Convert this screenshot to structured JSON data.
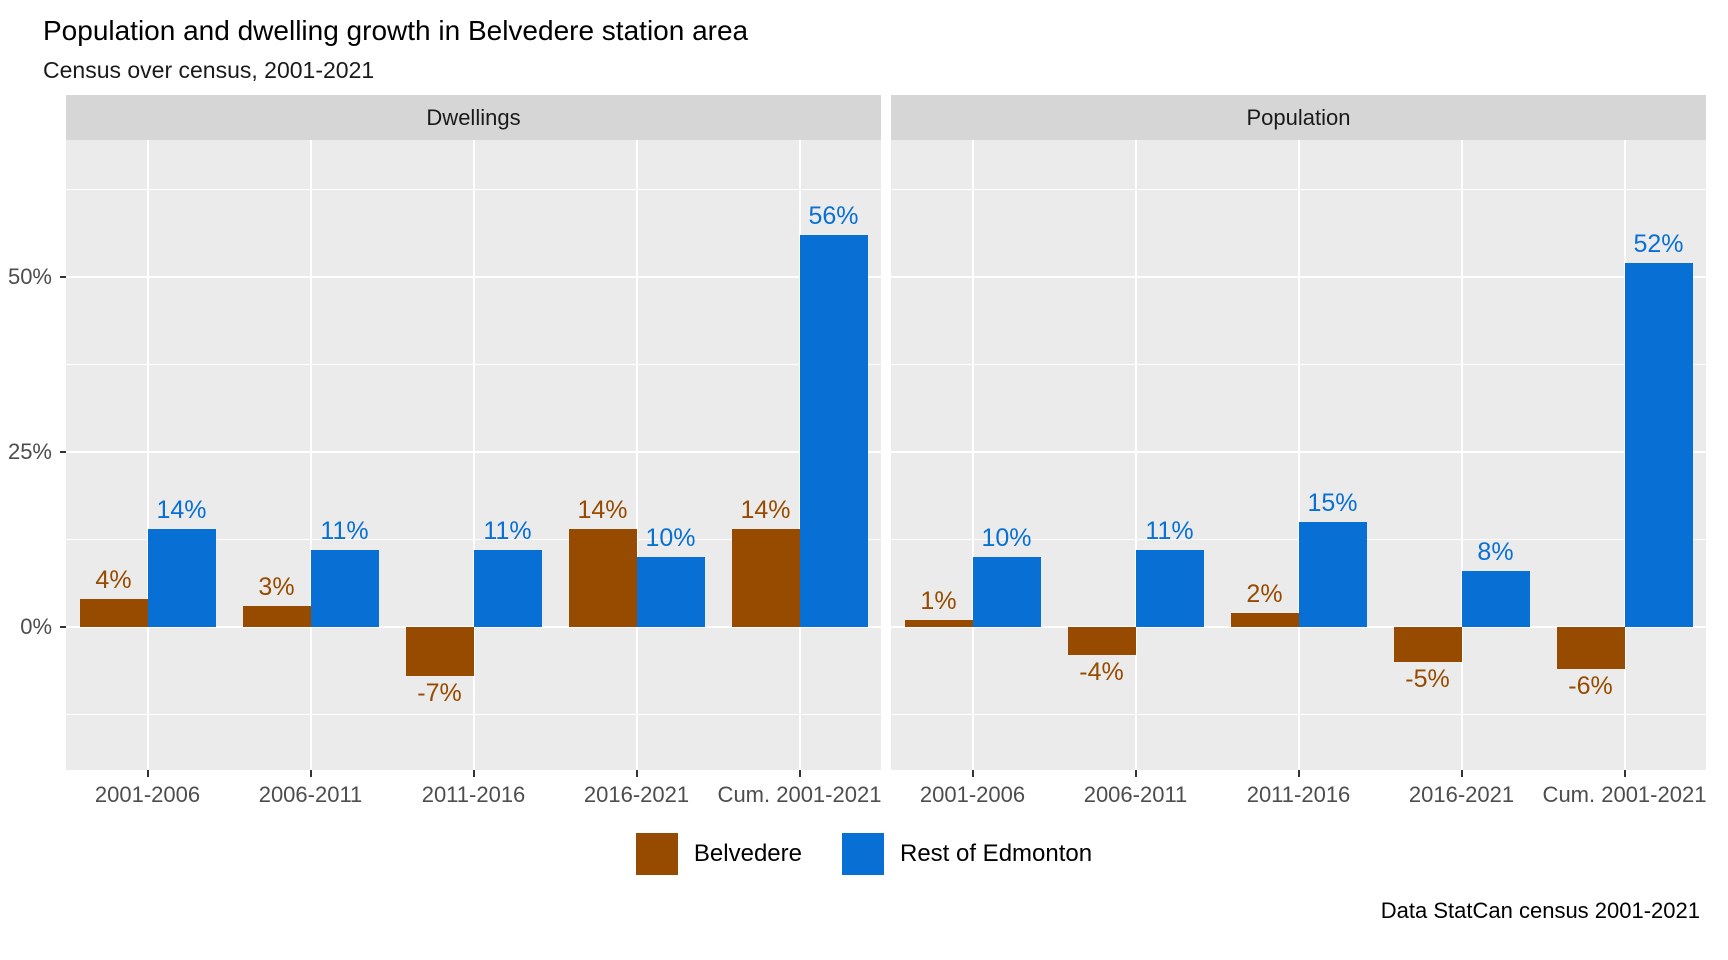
{
  "title": "Population and dwelling growth in Belvedere station area",
  "subtitle": "Census over census, 2001-2021",
  "caption": "Data StatCan census 2001-2021",
  "colors": {
    "belvedere": "#964B00",
    "rest_of_edmonton": "#0870D4",
    "panel_background": "#EBEBEB",
    "strip_background": "#D6D6D6",
    "gridline": "#FFFFFF",
    "axis_text": "#4D4D4D",
    "tick": "#333333"
  },
  "legend": {
    "items": [
      {
        "label": "Belvedere",
        "color": "#964B00"
      },
      {
        "label": "Rest of Edmonton",
        "color": "#0870D4"
      }
    ]
  },
  "chart_data": {
    "type": "bar",
    "layout": "two facets, dodged bars, shared y axis",
    "categories": [
      "2001-2006",
      "2006-2011",
      "2011-2016",
      "2016-2021",
      "Cum. 2001-2021"
    ],
    "y_ticks": [
      {
        "label": "0%",
        "value": 0
      },
      {
        "label": "25%",
        "value": 25
      },
      {
        "label": "50%",
        "value": 50
      }
    ],
    "minor_gridlines": [
      -12.5,
      12.5,
      37.5,
      62.5
    ],
    "ylim": [
      -20.4,
      69.6
    ],
    "grid": true,
    "legend_position": "bottom",
    "label_suffix": "%",
    "facets": [
      {
        "title": "Dwellings",
        "series": [
          {
            "name": "Belvedere",
            "color": "#964B00",
            "values": [
              4,
              3,
              -7,
              14,
              14
            ]
          },
          {
            "name": "Rest of Edmonton",
            "color": "#0870D4",
            "values": [
              14,
              11,
              11,
              10,
              56
            ]
          }
        ]
      },
      {
        "title": "Population",
        "series": [
          {
            "name": "Belvedere",
            "color": "#964B00",
            "values": [
              1,
              -4,
              2,
              -5,
              -6
            ]
          },
          {
            "name": "Rest of Edmonton",
            "color": "#0870D4",
            "values": [
              10,
              11,
              15,
              8,
              52
            ]
          }
        ]
      }
    ]
  }
}
